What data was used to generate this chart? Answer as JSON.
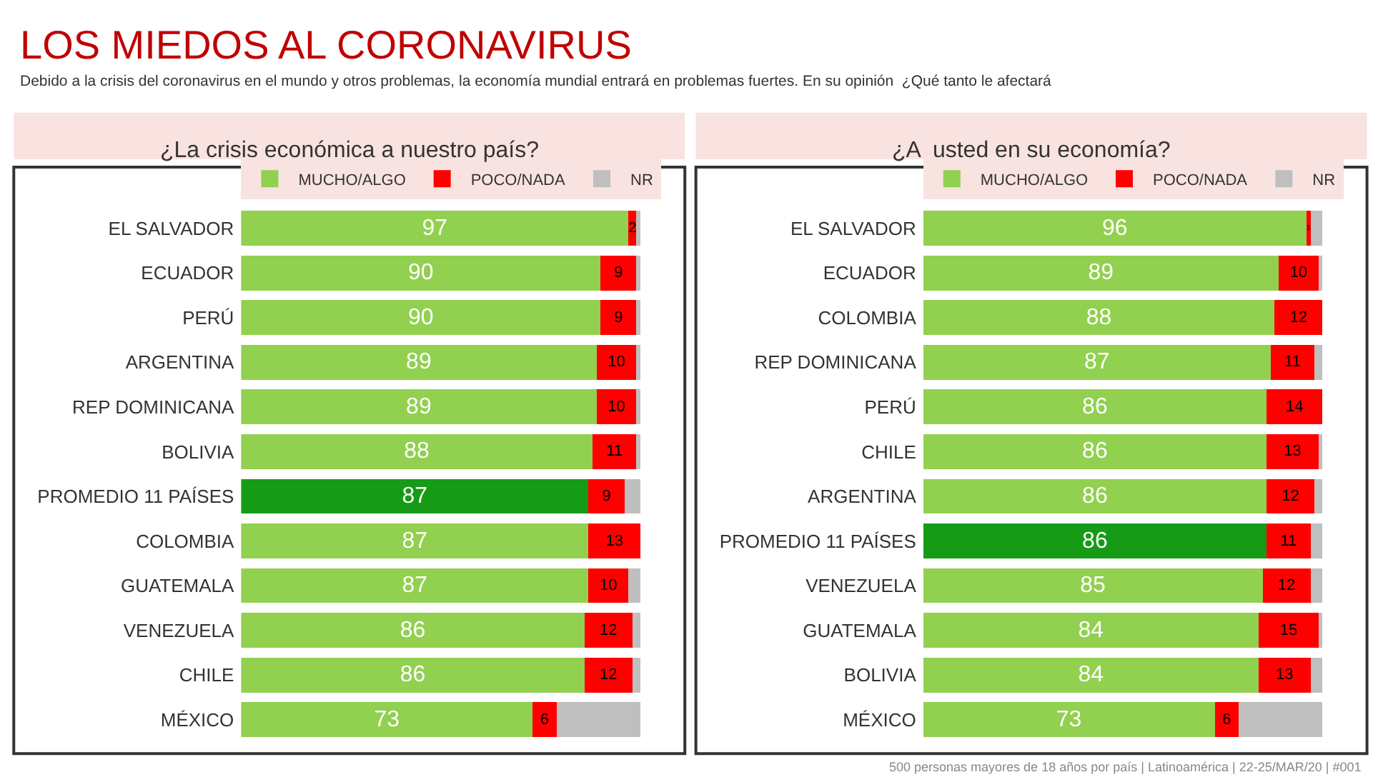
{
  "chart_data": [
    {
      "type": "bar",
      "orientation": "horizontal",
      "stacked": true,
      "legend": "top",
      "title": "¿La crisis económica a nuestro país?",
      "annotations": [
        "LOS MIEDOS AL CORONAVIRUS",
        "Debido a la crisis del coronavirus en el mundo y otros problemas, la economía mundial entrará en problemas fuertes. En su opinión  ¿Qué tanto le afectará",
        "500 personas mayores de 18 años por país | Latinoamérica | 22-25/MAR/20 | #001"
      ],
      "categories": [
        "EL SALVADOR",
        "ECUADOR",
        "PERÚ",
        "ARGENTINA",
        "REP DOMINICANA",
        "BOLIVIA",
        "PROMEDIO 11 PAÍSES",
        "COLOMBIA",
        "GUATEMALA",
        "VENEZUELA",
        "CHILE",
        "MÉXICO"
      ],
      "series": [
        {
          "name": "MUCHO/ALGO",
          "color": "#92d050",
          "colors": [
            "#92d050",
            "#92d050",
            "#92d050",
            "#92d050",
            "#92d050",
            "#92d050",
            "#169b17",
            "#92d050",
            "#92d050",
            "#92d050",
            "#92d050",
            "#92d050"
          ],
          "values": [
            97,
            90,
            90,
            89,
            89,
            88,
            87,
            87,
            87,
            86,
            86,
            73
          ],
          "value_labels": [
            "97",
            "90",
            "90",
            "89",
            "89",
            "88",
            "87",
            "87",
            "87",
            "86",
            "86",
            "73"
          ]
        },
        {
          "name": "POCO/NADA",
          "color": "#ff0000",
          "values": [
            2,
            9,
            9,
            10,
            10,
            11,
            9,
            13,
            10,
            12,
            12,
            6
          ],
          "value_labels": [
            "2",
            "9",
            "9",
            "10",
            "10",
            "11",
            "9",
            "13",
            "10",
            "12",
            "12",
            "6"
          ]
        },
        {
          "name": "NR",
          "color": "#bfbfbf",
          "values": [
            1,
            1,
            1,
            1,
            1,
            1,
            4,
            0,
            3,
            2,
            2,
            21
          ]
        }
      ]
    },
    {
      "type": "bar",
      "orientation": "horizontal",
      "stacked": true,
      "legend": "top",
      "title": "¿A  usted en su economía?",
      "categories": [
        "EL SALVADOR",
        "ECUADOR",
        "COLOMBIA",
        "REP DOMINICANA",
        "PERÚ",
        "CHILE",
        "ARGENTINA",
        "PROMEDIO 11 PAÍSES",
        "VENEZUELA",
        "GUATEMALA",
        "BOLIVIA",
        "MÉXICO"
      ],
      "series": [
        {
          "name": "MUCHO/ALGO",
          "color": "#92d050",
          "colors": [
            "#92d050",
            "#92d050",
            "#92d050",
            "#92d050",
            "#92d050",
            "#92d050",
            "#92d050",
            "#169b17",
            "#92d050",
            "#92d050",
            "#92d050",
            "#92d050"
          ],
          "values": [
            96,
            89,
            88,
            87,
            86,
            86,
            86,
            86,
            85,
            84,
            84,
            73
          ],
          "value_labels": [
            "96",
            "89",
            "88",
            "87",
            "86",
            "86",
            "86",
            "86",
            "85",
            "84",
            "84",
            "73"
          ]
        },
        {
          "name": "POCO/NADA",
          "color": "#ff0000",
          "values": [
            1,
            10,
            12,
            11,
            14,
            13,
            12,
            11,
            12,
            15,
            13,
            6
          ],
          "value_labels": [
            "1",
            "10",
            "12",
            "11",
            "14",
            "13",
            "12",
            "11",
            "12",
            "15",
            "13",
            "6"
          ]
        },
        {
          "name": "NR",
          "color": "#bfbfbf",
          "values": [
            3,
            1,
            0,
            2,
            0,
            1,
            2,
            3,
            3,
            1,
            3,
            21
          ]
        }
      ]
    }
  ]
}
